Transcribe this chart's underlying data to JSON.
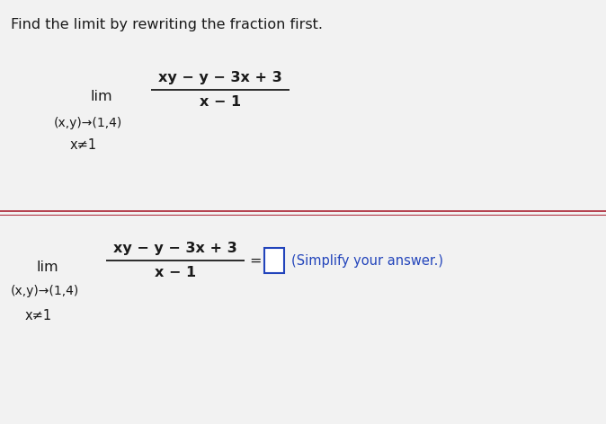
{
  "background_color": "#f2f2f2",
  "text_color": "#1a1a1a",
  "title_text": "Find the limit by rewriting the fraction first.",
  "title_fontsize": 11.5,
  "math_fontsize": 11.5,
  "sub_fontsize": 10.0,
  "neq_fontsize": 10.5,
  "divider_color": "#aa2233",
  "simplify_color": "#2244bb",
  "simplify_text": "(Simplify your answer.)",
  "numerator_text": "xy − y − 3x + 3",
  "denominator_text": "x − 1",
  "limit_sub_text": "(x,y)→(1,4)",
  "neq_text": "x≠1",
  "lim_text": "lim"
}
